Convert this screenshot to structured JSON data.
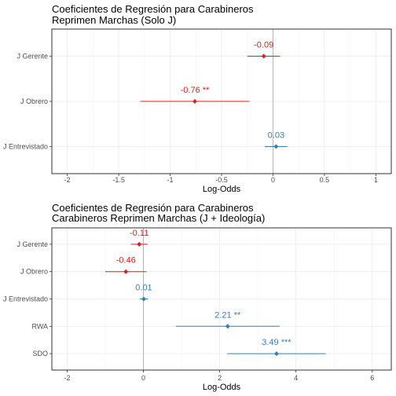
{
  "chart_data": [
    {
      "type": "scatter",
      "subtype": "coefficient-plot",
      "title": [
        "Coeficientes de Regresión para Carabineros",
        "Reprimen Marchas (Solo J)"
      ],
      "xlabel": "Log-Odds",
      "ylabel": "",
      "xlim": [
        -2.15,
        1.15
      ],
      "xticks": [
        -2,
        -1.5,
        -1,
        -0.5,
        0,
        0.5,
        1
      ],
      "xtick_labels": [
        "-2",
        "-1.5",
        "-1",
        "-0.5",
        "0",
        "0.5",
        "1"
      ],
      "grid": true,
      "reference_line": 0,
      "categories": [
        "J Gerente",
        "J Obrero",
        "J Entrevistado"
      ],
      "points": [
        {
          "label": "J Gerente",
          "estimate": -0.09,
          "low": -0.25,
          "high": 0.07,
          "text": "-0.09",
          "color": "#e41a1c"
        },
        {
          "label": "J Obrero",
          "estimate": -0.76,
          "low": -1.29,
          "high": -0.23,
          "text": "-0.76 **",
          "color": "#e41a1c"
        },
        {
          "label": "J Entrevistado",
          "estimate": 0.03,
          "low": -0.08,
          "high": 0.14,
          "text": "0.03",
          "color": "#377eb8"
        }
      ]
    },
    {
      "type": "scatter",
      "subtype": "coefficient-plot",
      "title": [
        "Coeficientes de Regresión para Carabineros",
        "Carabineros Reprimen Marchas (J + Ideología)"
      ],
      "xlabel": "Log-Odds",
      "ylabel": "",
      "xlim": [
        -2.4,
        6.5
      ],
      "xticks": [
        -2,
        0,
        2,
        4,
        6
      ],
      "xtick_labels": [
        "-2",
        "0",
        "2",
        "4",
        "6"
      ],
      "grid": true,
      "reference_line": 0,
      "categories": [
        "J Gerente",
        "J Obrero",
        "J Entrevistado",
        "RWA",
        "SDO"
      ],
      "points": [
        {
          "label": "J Gerente",
          "estimate": -0.11,
          "low": -0.33,
          "high": 0.11,
          "text": "-0.11",
          "color": "#e41a1c"
        },
        {
          "label": "J Obrero",
          "estimate": -0.46,
          "low": -1.0,
          "high": 0.08,
          "text": "-0.46",
          "color": "#e41a1c"
        },
        {
          "label": "J Entrevistado",
          "estimate": 0.01,
          "low": -0.1,
          "high": 0.12,
          "text": "0.01",
          "color": "#377eb8"
        },
        {
          "label": "RWA",
          "estimate": 2.21,
          "low": 0.85,
          "high": 3.57,
          "text": "2.21 **",
          "color": "#377eb8"
        },
        {
          "label": "SDO",
          "estimate": 3.49,
          "low": 2.2,
          "high": 4.78,
          "text": "3.49 ***",
          "color": "#377eb8"
        }
      ]
    }
  ]
}
